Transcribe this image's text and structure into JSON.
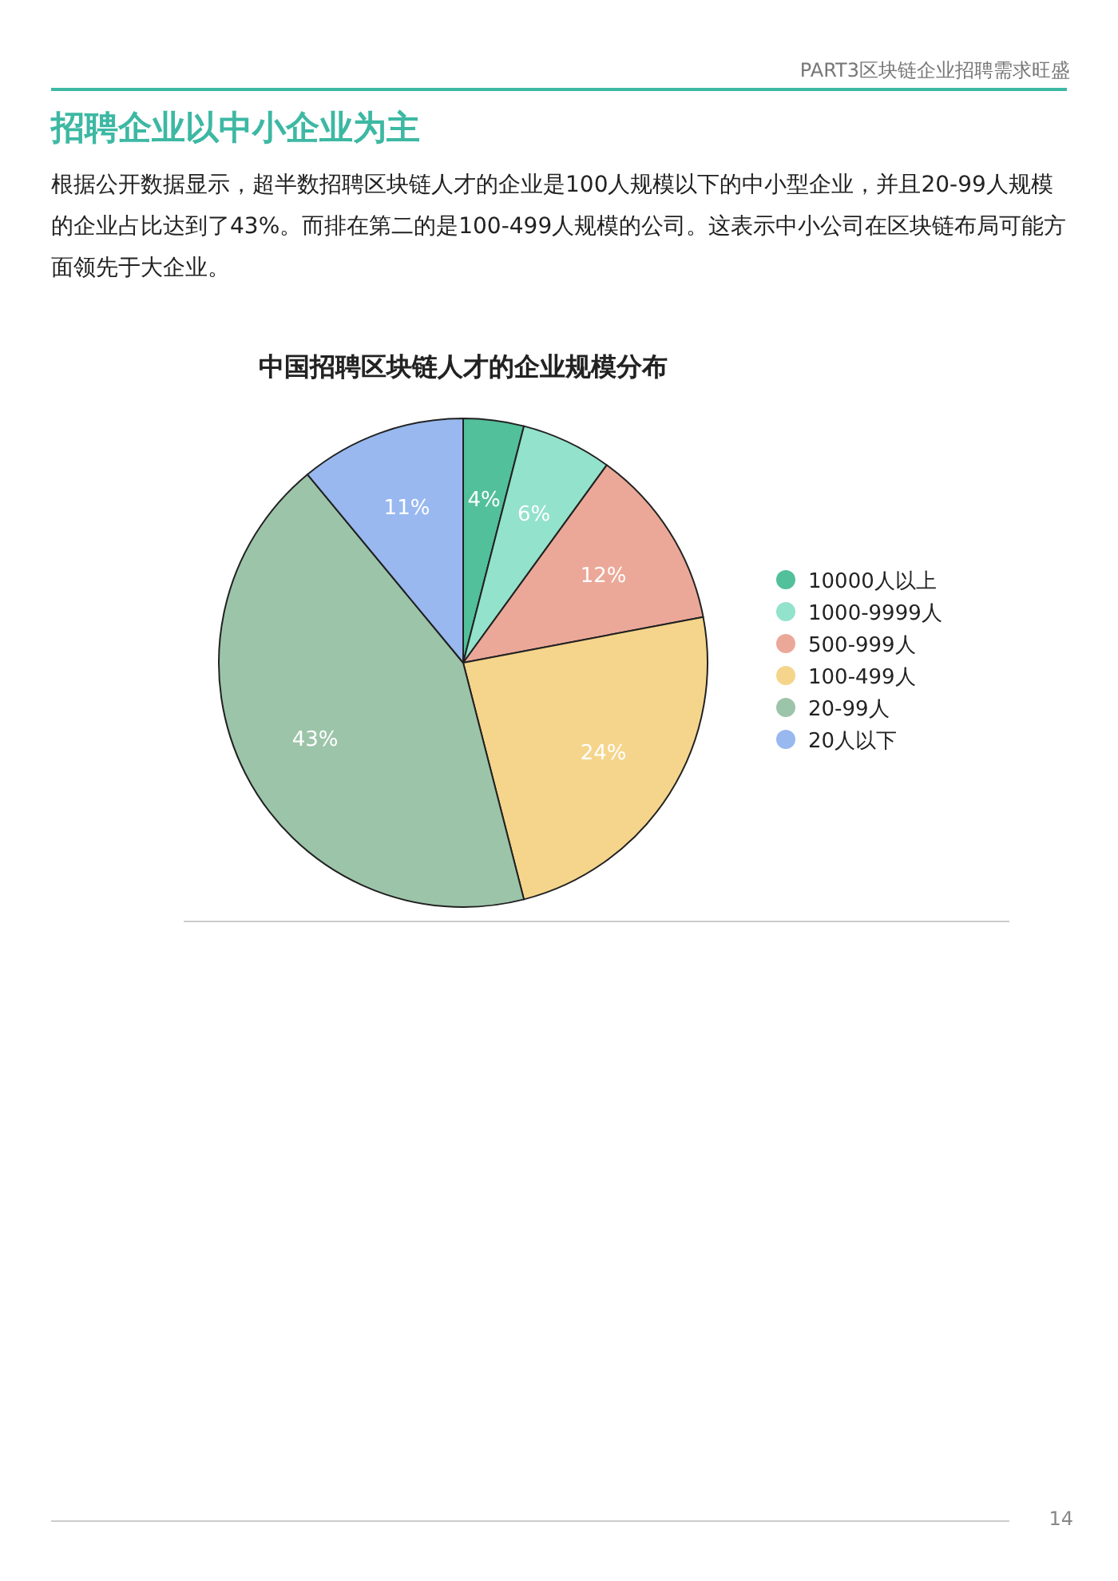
{
  "chart_data": {
    "type": "pie",
    "title": "中国招聘区块链人才的企业规模分布",
    "categories": [
      "10000人以上",
      "1000-9999人",
      "500-999人",
      "100-499人",
      "20-99人",
      "20人以下"
    ],
    "values": [
      4,
      6,
      12,
      24,
      43,
      11
    ],
    "value_labels": [
      "4%",
      "6%",
      "12%",
      "24%",
      "43%",
      "11%"
    ],
    "colors": [
      "#52c09a",
      "#93e2cb",
      "#eba898",
      "#f5d58c",
      "#9cc4a9",
      "#98b8ef"
    ],
    "legend": "right",
    "annotations": [
      "PART3区块链企业招聘需求旺盛",
      "招聘企业以中小企业为主",
      "根据公开数据显示，超半数招聘区块链人才的企业是100人规模以下的中小型企业，并且20-99人规模的企业占比达到了43%。而排在第二的是100-499人规模的公司。这表示中小公司在区块链布局可能方面领先于大企业。",
      "14"
    ]
  }
}
